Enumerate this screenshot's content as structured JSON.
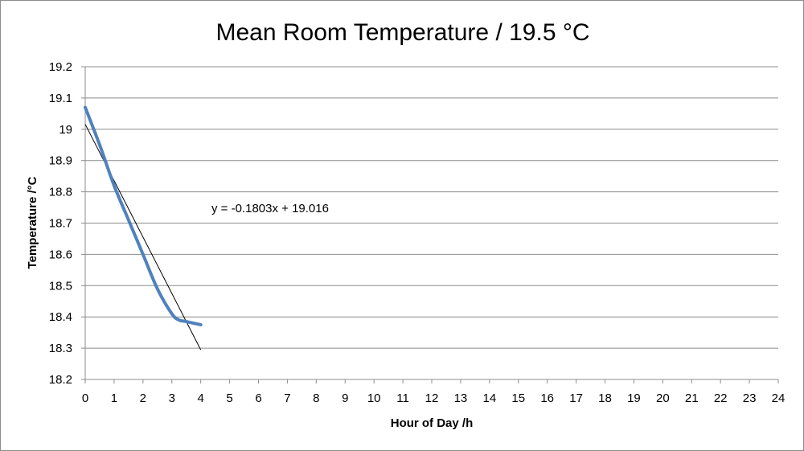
{
  "chart_data": {
    "type": "line",
    "title": "Mean Room Temperature / 19.5 °C",
    "xlabel": "Hour of Day /h",
    "ylabel": "Temperature /°C",
    "xlim": [
      0,
      24
    ],
    "ylim": [
      18.2,
      19.2
    ],
    "x_ticks": [
      "0",
      "1",
      "2",
      "3",
      "4",
      "5",
      "6",
      "7",
      "8",
      "9",
      "10",
      "11",
      "12",
      "13",
      "14",
      "15",
      "16",
      "17",
      "18",
      "19",
      "20",
      "21",
      "22",
      "23",
      "24"
    ],
    "y_ticks": [
      "18.2",
      "18.3",
      "18.4",
      "18.5",
      "18.6",
      "18.7",
      "18.8",
      "18.9",
      "19",
      "19.1",
      "19.2"
    ],
    "grid": "horizontal",
    "legend": "none",
    "series": [
      {
        "color": "#4f81bd",
        "x": [
          0,
          0.5,
          1,
          1.5,
          2,
          2.5,
          3,
          3.25,
          3.5,
          4
        ],
        "y": [
          19.07,
          18.95,
          18.82,
          18.71,
          18.6,
          18.49,
          18.41,
          18.39,
          18.385,
          18.375
        ]
      }
    ],
    "trendline": {
      "color": "#000000",
      "slope": -0.1803,
      "intercept": 19.016,
      "x_range": [
        0,
        4
      ],
      "equation": "y = -0.1803x + 19.016"
    }
  }
}
